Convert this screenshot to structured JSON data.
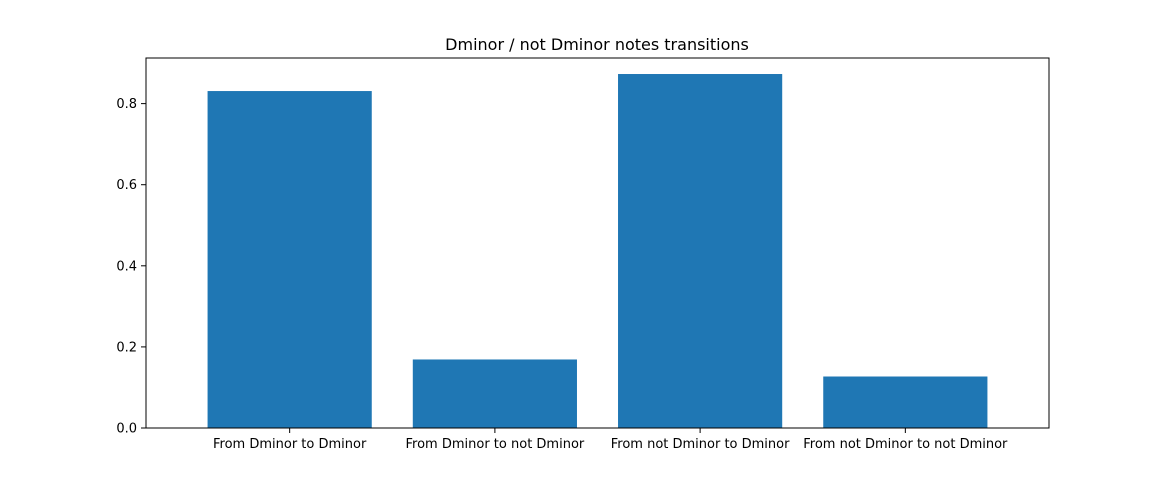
{
  "chart_data": {
    "type": "bar",
    "title": "Dminor / not Dminor notes transitions",
    "xlabel": "",
    "ylabel": "",
    "categories": [
      "From Dminor to Dminor",
      "From Dminor to not Dminor",
      "From not Dminor to Dminor",
      "From not Dminor to not Dminor"
    ],
    "values": [
      0.831,
      0.169,
      0.873,
      0.127
    ],
    "ylim": [
      0,
      0.9125
    ],
    "yticks": [
      0.0,
      0.2,
      0.4,
      0.6,
      0.8
    ],
    "ytick_labels": [
      "0.0",
      "0.2",
      "0.4",
      "0.6",
      "0.8"
    ],
    "bar_color": "#1f77b4",
    "grid": false,
    "legend": false
  }
}
